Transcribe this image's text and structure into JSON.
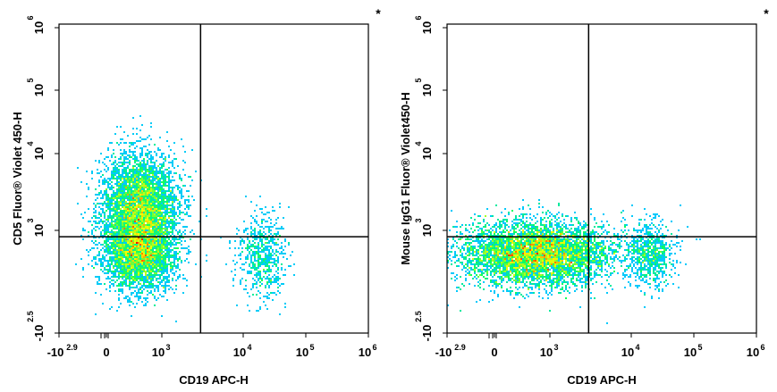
{
  "chart_data": [
    {
      "type": "scatter",
      "subtype": "flow-cytometry-density-dot-plot",
      "xlabel": "CD19 APC-H",
      "ylabel": "CD5  Fluor® Violet 450-H",
      "corner_mark": "*",
      "x_ticks": [
        {
          "base": "-10",
          "exp": "2.9",
          "value": -794
        },
        {
          "base": "0",
          "exp": "",
          "value": 0
        },
        {
          "base": "10",
          "exp": "3",
          "value": 1000
        },
        {
          "base": "10",
          "exp": "4",
          "value": 10000
        },
        {
          "base": "10",
          "exp": "5",
          "value": 100000
        },
        {
          "base": "10",
          "exp": "6",
          "value": 1000000
        }
      ],
      "y_ticks": [
        {
          "base": "-10",
          "exp": "2.5",
          "value": -316
        },
        {
          "base": "10",
          "exp": "3",
          "value": 1000
        },
        {
          "base": "10",
          "exp": "4",
          "value": 10000
        },
        {
          "base": "10",
          "exp": "5",
          "value": 100000
        },
        {
          "base": "10",
          "exp": "6",
          "value": 1000000
        }
      ],
      "x_scale": "biexponential",
      "y_scale": "biexponential",
      "gate": {
        "x": 3000,
        "y": 600
      },
      "color_scale": [
        "#0000ff",
        "#00c8ff",
        "#00ff64",
        "#ffff00",
        "#ff0000"
      ],
      "populations": [
        {
          "name": "",
          "x_center": 150,
          "y_center": 2000,
          "x_spread": 0.35,
          "y_spread": 0.5,
          "count": 1500
        },
        {
          "name": "",
          "x_center": 150,
          "y_center": 150,
          "x_spread": 0.35,
          "y_spread": 0.35,
          "count": 1000
        },
        {
          "name": "",
          "x_center": 20000,
          "y_center": 120,
          "x_spread": 0.22,
          "y_spread": 0.4,
          "count": 220
        }
      ]
    },
    {
      "type": "scatter",
      "subtype": "flow-cytometry-density-dot-plot",
      "xlabel": "CD19 APC-H",
      "ylabel": "Mouse IgG1  Fluor® Violet450-H",
      "corner_mark": "*",
      "x_ticks": [
        {
          "base": "-10",
          "exp": "2.9",
          "value": -794
        },
        {
          "base": "0",
          "exp": "",
          "value": 0
        },
        {
          "base": "10",
          "exp": "3",
          "value": 1000
        },
        {
          "base": "10",
          "exp": "4",
          "value": 10000
        },
        {
          "base": "10",
          "exp": "5",
          "value": 100000
        },
        {
          "base": "10",
          "exp": "6",
          "value": 1000000
        }
      ],
      "y_ticks": [
        {
          "base": "-10",
          "exp": "2.5",
          "value": -316
        },
        {
          "base": "10",
          "exp": "3",
          "value": 1000
        },
        {
          "base": "10",
          "exp": "4",
          "value": 10000
        },
        {
          "base": "10",
          "exp": "5",
          "value": 100000
        },
        {
          "base": "10",
          "exp": "6",
          "value": 1000000
        }
      ],
      "x_scale": "biexponential",
      "y_scale": "biexponential",
      "gate": {
        "x": 3000,
        "y": 600
      },
      "color_scale": [
        "#0000ff",
        "#00c8ff",
        "#00ff64",
        "#ffff00",
        "#ff0000"
      ],
      "populations": [
        {
          "name": "",
          "x_center": 300,
          "y_center": 150,
          "x_spread": 0.7,
          "y_spread": 0.3,
          "count": 2300
        },
        {
          "name": "",
          "x_center": 20000,
          "y_center": 150,
          "x_spread": 0.22,
          "y_spread": 0.3,
          "count": 250
        }
      ]
    }
  ]
}
